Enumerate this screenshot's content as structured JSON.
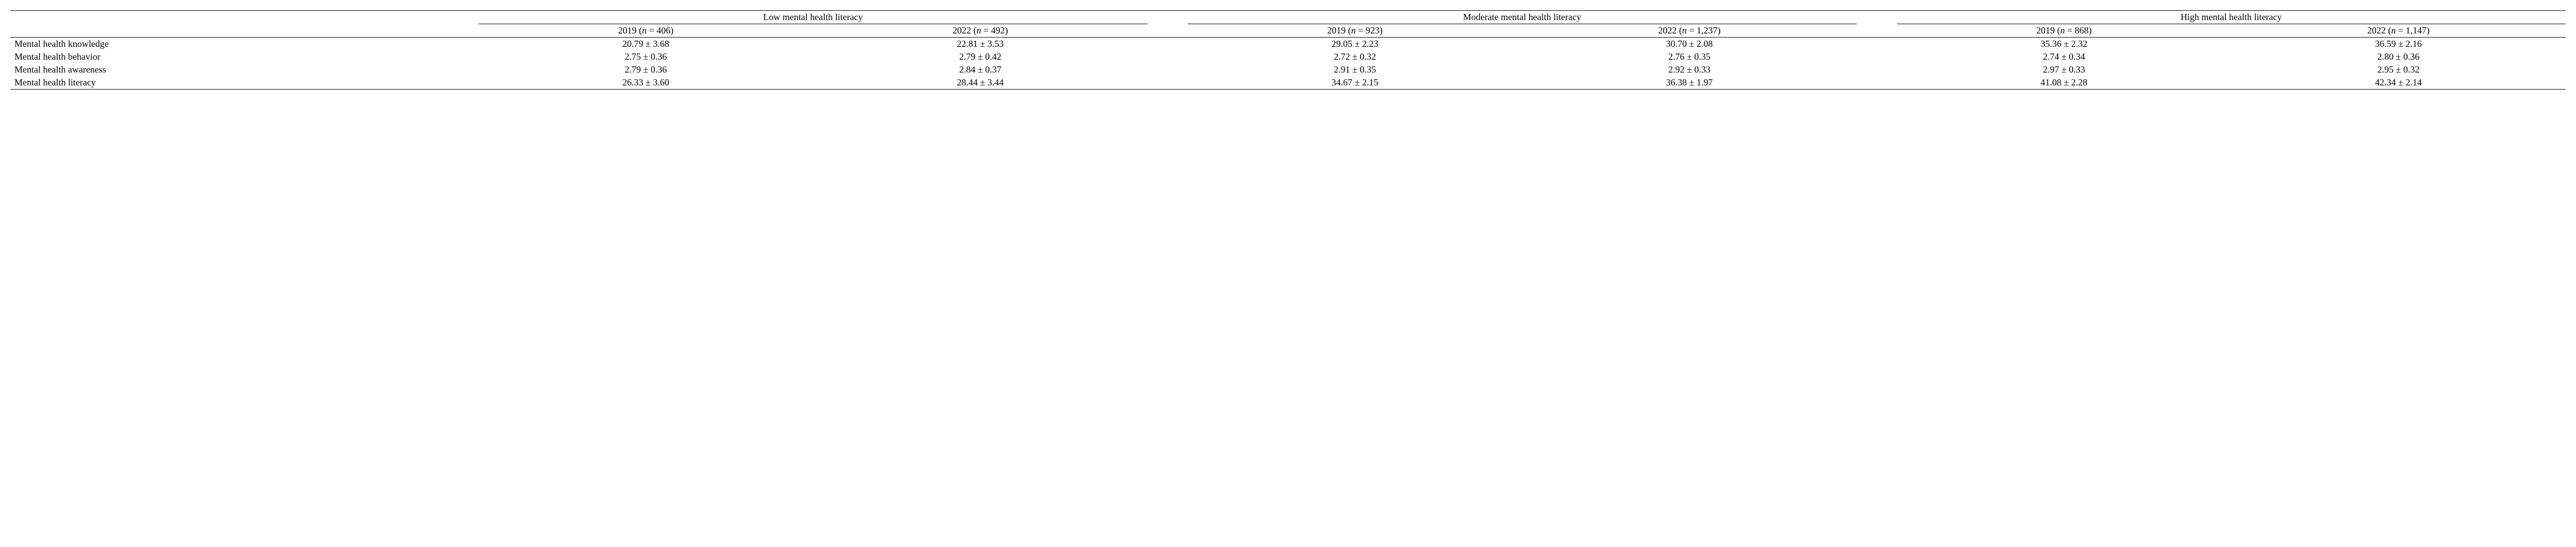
{
  "table": {
    "type": "table",
    "font_family": "Times New Roman",
    "font_size_pt": 18,
    "text_color": "#000000",
    "background_color": "#ffffff",
    "rule_color": "#000000",
    "groups": [
      {
        "label": "Low mental health literacy",
        "cols": [
          {
            "year": "2019",
            "n": "406"
          },
          {
            "year": "2022",
            "n": "492"
          }
        ]
      },
      {
        "label": "Moderate mental health literacy",
        "cols": [
          {
            "year": "2019",
            "n": "923"
          },
          {
            "year": "2022",
            "n": "1,237"
          }
        ]
      },
      {
        "label": "High mental health literacy",
        "cols": [
          {
            "year": "2019",
            "n": "868"
          },
          {
            "year": "2022",
            "n": "1,147"
          }
        ]
      }
    ],
    "rows": [
      {
        "label": "Mental health knowledge",
        "values": [
          "20.79 ± 3.68",
          "22.81 ± 3.53",
          "29.05 ± 2.23",
          "30.70 ± 2.08",
          "35.36 ± 2.32",
          "36.59 ± 2.16"
        ]
      },
      {
        "label": "Mental health behavior",
        "values": [
          "2.75 ± 0.36",
          "2.79 ± 0.42",
          "2.72 ± 0.32",
          "2.76 ± 0.35",
          "2.74 ± 0.34",
          "2.80 ± 0.36"
        ]
      },
      {
        "label": "Mental health awareness",
        "values": [
          "2.79 ± 0.36",
          "2.84 ± 0.37",
          "2.91 ± 0.35",
          "2.92 ± 0.33",
          "2.97 ± 0.33",
          "2.95 ± 0.32"
        ]
      },
      {
        "label": "Mental health literacy",
        "values": [
          "26.33 ± 3.60",
          "28.44 ± 3.44",
          "34.67 ± 2.15",
          "36.38 ± 1.97",
          "41.08 ± 2.28",
          "42.34 ± 2.14"
        ]
      }
    ]
  }
}
